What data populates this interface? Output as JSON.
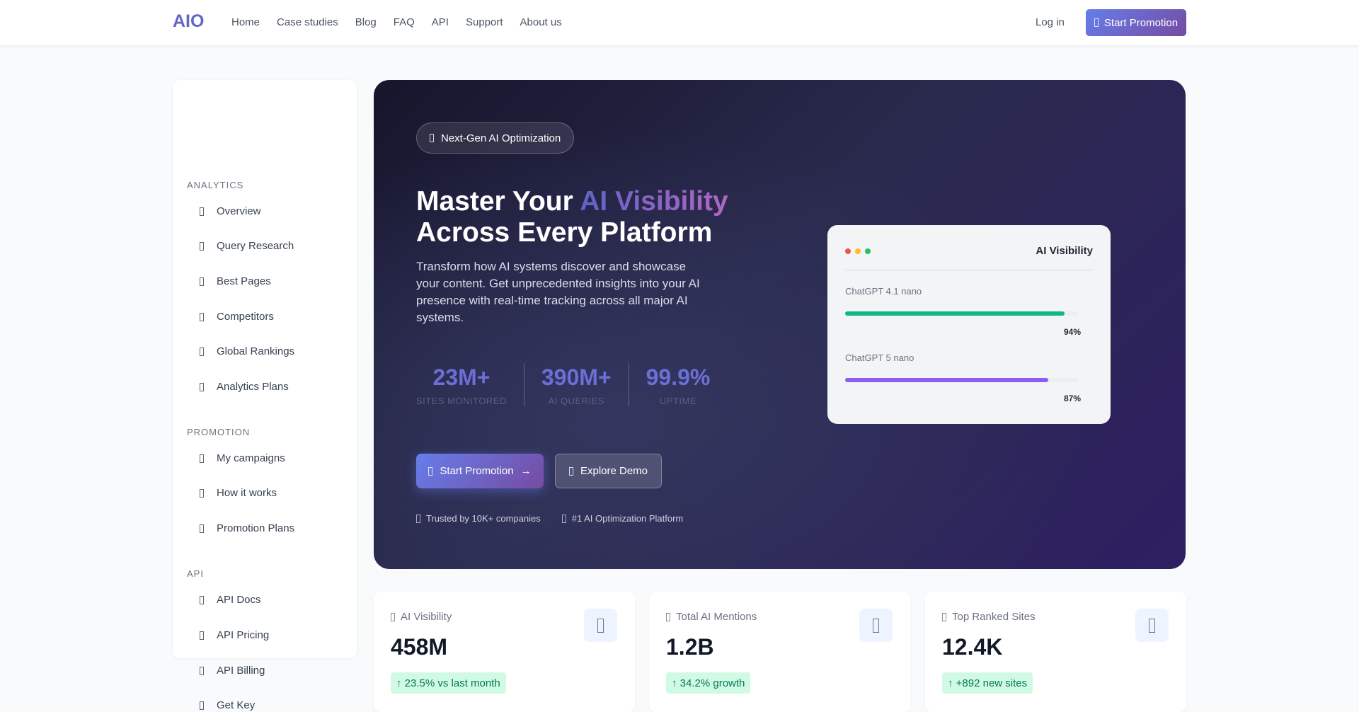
{
  "nav": {
    "logo": "AIO",
    "links": [
      "Home",
      "Case studies",
      "Blog",
      "FAQ",
      "API",
      "Support",
      "About us"
    ],
    "login": "Log in",
    "cta": "Start Promotion"
  },
  "sidebar": {
    "sections": [
      {
        "title": "ANALYTICS",
        "items": [
          "Overview",
          "Query Research",
          "Best Pages",
          "Competitors",
          "Global Rankings",
          "Analytics Plans"
        ]
      },
      {
        "title": "PROMOTION",
        "items": [
          "My campaigns",
          "How it works",
          "Promotion Plans"
        ]
      },
      {
        "title": "API",
        "items": [
          "API Docs",
          "API Pricing",
          "API Billing",
          "Get Key"
        ]
      }
    ]
  },
  "hero": {
    "badge": "Next-Gen AI Optimization",
    "title_a": "Master Your ",
    "title_highlight": "AI Visibility",
    "title_b": "Across Every Platform",
    "paragraph": "Transform how AI systems discover and showcase your content. Get unprecedented insights into your AI presence with real-time tracking across all major AI systems.",
    "stats": [
      {
        "value": "23M+",
        "label": "SITES MONITORED"
      },
      {
        "value": "390M+",
        "label": "AI QUERIES"
      },
      {
        "value": "99.9%",
        "label": "UPTIME"
      }
    ],
    "primary": "Start Promotion",
    "primary_arrow": "→",
    "secondary": "Explore Demo",
    "trust": [
      "Trusted by 10K+ companies",
      "#1 AI Optimization Platform"
    ]
  },
  "visibility": {
    "title": "AI Visibility",
    "dots": [
      "#ef5350",
      "#fbbf24",
      "#22c55e"
    ],
    "models": [
      {
        "name": "ChatGPT 4.1 nano",
        "percent": 94,
        "label": "94%",
        "color": "#10b981"
      },
      {
        "name": "ChatGPT 5 nano",
        "percent": 87,
        "label": "87%",
        "color": "#8b5cf6"
      }
    ]
  },
  "cards": [
    {
      "label": "AI Visibility",
      "value": "458M",
      "change": "↑ 23.5% vs last month"
    },
    {
      "label": "Total AI Mentions",
      "value": "1.2B",
      "change": "↑ 34.2% growth"
    },
    {
      "label": "Top Ranked Sites",
      "value": "12.4K",
      "change": "↑ +892 new sites"
    }
  ]
}
